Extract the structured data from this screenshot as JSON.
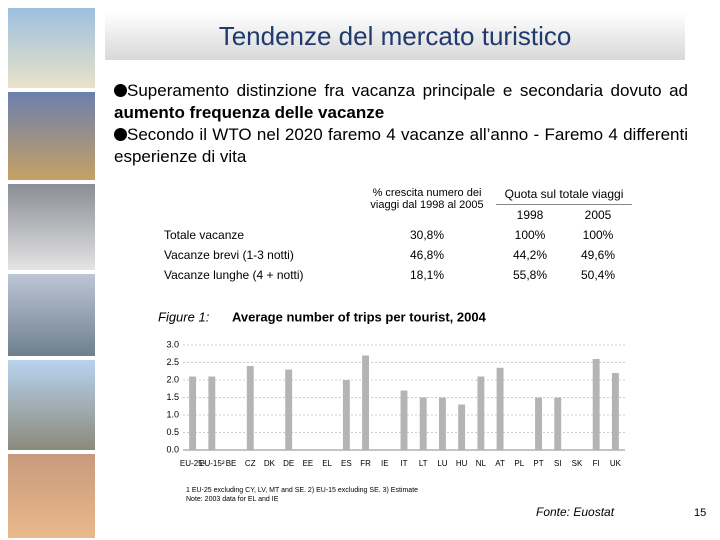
{
  "header": {
    "title": "Tendenze del mercato turistico"
  },
  "bullets": [
    {
      "text": "Superamento distinzione fra vacanza principale e secondaria dovuto ad ",
      "bold": "aumento frequenza delle vacanze"
    },
    {
      "text": "Secondo il WTO nel 2020 faremo 4 vacanze all’anno - Faremo 4 differenti esperienze di vita"
    }
  ],
  "table": {
    "header": [
      "% crescita numero dei viaggi dal 1998 al 2005",
      "Quota sul totale viaggi",
      "1998",
      "2005"
    ],
    "rows": [
      [
        "Totale vacanze",
        "30,8%",
        "100%",
        "100%"
      ],
      [
        "Vacanze brevi (1-3 notti)",
        "46,8%",
        "44,2%",
        "49,6%"
      ],
      [
        "Vacanze lunghe (4 + notti)",
        "18,1%",
        "55,8%",
        "50,4%"
      ]
    ]
  },
  "figure": {
    "type": "bar",
    "label": "Figure 1:",
    "title": "Average number of trips per tourist, 2004",
    "categories": [
      "EU-25¹",
      "EU-15²",
      "BE",
      "CZ",
      "DK",
      "DE",
      "EE",
      "EL",
      "ES",
      "FR",
      "IE",
      "IT",
      "LT",
      "LU",
      "HU",
      "NL",
      "AT",
      "PL",
      "PT",
      "SI",
      "SK",
      "FI",
      "UK"
    ],
    "values": [
      2.1,
      2.1,
      null,
      2.4,
      null,
      2.3,
      null,
      null,
      2.0,
      2.7,
      null,
      1.7,
      1.5,
      1.5,
      1.3,
      2.1,
      2.35,
      null,
      1.5,
      1.5,
      null,
      2.6,
      2.2
    ],
    "color": "#b4b4b4",
    "ylim": [
      0,
      3
    ],
    "yticks": [
      {
        "value": 0,
        "label": "0.0"
      },
      0.5,
      {
        "value": 1,
        "label": "1.0"
      },
      1.5,
      {
        "value": 2,
        "label": "2.0"
      },
      2.5,
      {
        "value": 3,
        "label": "3.0"
      }
    ],
    "grid": true,
    "notes": [
      "1 EU-25 excluding CY, LV, MT and SE. 2) EU-15 excluding SE. 3) Estimate",
      "Note: 2003 data for EL and IE"
    ]
  },
  "source": "Fonte: Euostat",
  "page_number": "15"
}
